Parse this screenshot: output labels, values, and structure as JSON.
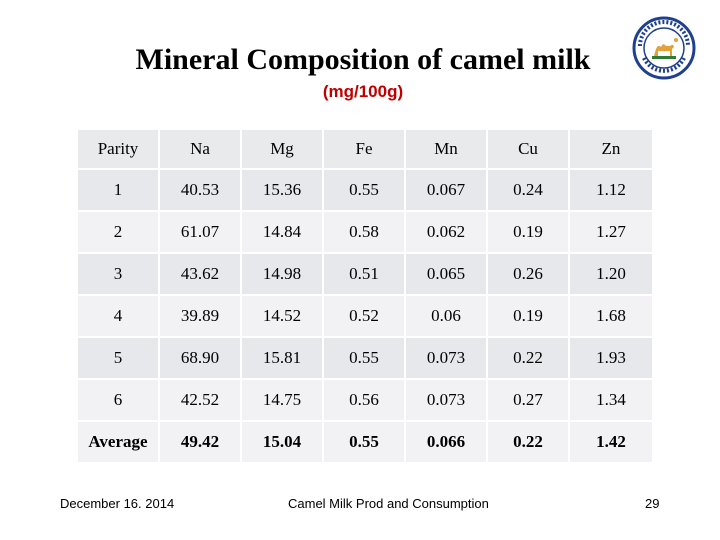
{
  "slide": {
    "title": "Mineral Composition of camel milk",
    "subtitle": "(mg/100g)"
  },
  "table": {
    "headers": [
      "Parity",
      "Na",
      "Mg",
      "Fe",
      "Mn",
      "Cu",
      "Zn"
    ],
    "rows": [
      [
        "1",
        "40.53",
        "15.36",
        "0.55",
        "0.067",
        "0.24",
        "1.12"
      ],
      [
        "2",
        "61.07",
        "14.84",
        "0.58",
        "0.062",
        "0.19",
        "1.27"
      ],
      [
        "3",
        "43.62",
        "14.98",
        "0.51",
        "0.065",
        "0.26",
        "1.20"
      ],
      [
        "4",
        "39.89",
        "14.52",
        "0.52",
        "0.06",
        "0.19",
        "1.68"
      ],
      [
        "5",
        "68.90",
        "15.81",
        "0.55",
        "0.073",
        "0.22",
        "1.93"
      ],
      [
        "6",
        "42.52",
        "14.75",
        "0.56",
        "0.073",
        "0.27",
        "1.34"
      ],
      [
        "Average",
        "49.42",
        "15.04",
        "0.55",
        "0.066",
        "0.22",
        "1.42"
      ]
    ]
  },
  "footer": {
    "date": "December 16. 2014",
    "center": "Camel Milk Prod and Consumption",
    "page": "29"
  },
  "logo": {
    "icon": "camel-association-seal-icon",
    "ring_color": "#1f3f8f",
    "accent_color": "#e2a23a",
    "text": "CAMEL ASSOCIATION OF PAKISTAN"
  }
}
